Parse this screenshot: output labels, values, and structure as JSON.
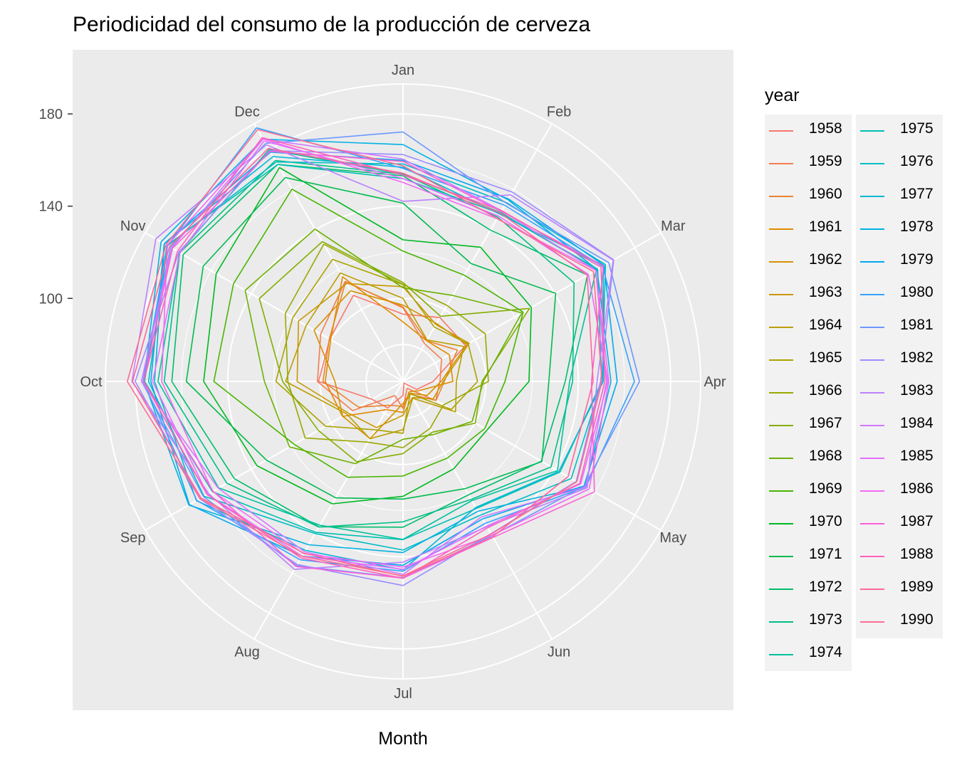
{
  "chart_data": {
    "type": "line",
    "coordinates": "polar",
    "title": "Periodicidad del consumo de la producción de cerveza",
    "xlabel": "Month",
    "ylabel": "",
    "categories": [
      "Jan",
      "Feb",
      "Mar",
      "Apr",
      "May",
      "Jun",
      "Jul",
      "Aug",
      "Sep",
      "Oct",
      "Nov",
      "Dec"
    ],
    "radial_ticks": [
      100,
      140,
      180
    ],
    "radial_range": [
      64,
      193
    ],
    "grid": true,
    "legend_title": "year",
    "legend_placement": "right",
    "series": [
      {
        "name": "1958",
        "color": "#F8766D",
        "values": [
          93.2,
          96,
          95.2,
          77.1,
          70.9,
          64.8,
          70.1,
          77.3,
          79.5,
          100.6,
          100.7,
          107.1
        ]
      },
      {
        "name": "1959",
        "color": "#F27D52",
        "values": [
          95.9,
          82.8,
          83.3,
          80,
          80.4,
          67.5,
          75.7,
          71.1,
          89.3,
          101.1,
          105.2,
          114.1
        ]
      },
      {
        "name": "1960",
        "color": "#EA8331",
        "values": [
          96.3,
          84.4,
          91.2,
          81.9,
          80.5,
          70.4,
          74.8,
          75.9,
          86.3,
          98.7,
          100.9,
          113.8
        ]
      },
      {
        "name": "1961",
        "color": "#E18A00",
        "values": [
          89.8,
          84.4,
          87.2,
          85.6,
          72,
          69.2,
          77.5,
          78.1,
          94.3,
          97.7,
          100.2,
          116.4
        ]
      },
      {
        "name": "1962",
        "color": "#D69100",
        "values": [
          97.1,
          93,
          96,
          80.5,
          76.1,
          69.9,
          73.6,
          92.6,
          94.2,
          93.5,
          108.5,
          109.4
        ]
      },
      {
        "name": "1963",
        "color": "#CA9700",
        "values": [
          105.1,
          92.5,
          97.1,
          81.4,
          79.1,
          72.1,
          78.7,
          87.1,
          91.4,
          109.9,
          116.3,
          113
        ]
      },
      {
        "name": "1964",
        "color": "#BB9D00",
        "values": [
          100,
          84.8,
          94.3,
          87.1,
          90.3,
          72.4,
          84.9,
          92.7,
          92.2,
          114.9,
          112.5,
          118.3
        ]
      },
      {
        "name": "1965",
        "color": "#ABA300",
        "values": [
          106,
          91.2,
          96.6,
          96.3,
          88.2,
          70.2,
          86.5,
          88.2,
          102.8,
          119.1,
          119.2,
          125.1
        ]
      },
      {
        "name": "1966",
        "color": "#99A800",
        "values": [
          106.1,
          102.1,
          105.2,
          101,
          84.3,
          87.5,
          92.7,
          94.4,
          113,
          113.9,
          122.9,
          132.7
        ]
      },
      {
        "name": "1967",
        "color": "#84AD00",
        "values": [
          106.9,
          96.6,
          127.3,
          98.2,
          100.2,
          89.4,
          95.3,
          104.2,
          106.4,
          116.2,
          135.9,
          134
        ]
      },
      {
        "name": "1968",
        "color": "#6BB100",
        "values": [
          104.6,
          107.1,
          123.5,
          98.8,
          98.6,
          90.6,
          89.1,
          105.2,
          120.8,
          124.1,
          143,
          140.3
        ]
      },
      {
        "name": "1969",
        "color": "#49B500",
        "values": [
          120.5,
          117.2,
          124.1,
          108.2,
          104.9,
          102.4,
          105,
          112,
          118.5,
          146,
          148.8,
          160.3
        ]
      },
      {
        "name": "1970",
        "color": "#00B81F",
        "values": [
          125.4,
          131.2,
          128.2,
          118.6,
          106.1,
          107.8,
          113.8,
          125.3,
          137.1,
          150.4,
          157.5,
          171.1
        ]
      },
      {
        "name": "1971",
        "color": "#00BB4E",
        "values": [
          141.3,
          123,
          140.4,
          127.2,
          133.5,
          117.7,
          115,
          122.3,
          132.3,
          157.9,
          164,
          166.1
        ]
      },
      {
        "name": "1972",
        "color": "#00BD6C",
        "values": [
          153.2,
          139.8,
          156.3,
          134.3,
          133.2,
          120.8,
          127.2,
          136.8,
          148.4,
          164.2,
          174,
          172.7
        ]
      },
      {
        "name": "1973",
        "color": "#00BF86",
        "values": [
          153.9,
          146.2,
          149.6,
          137.5,
          138.1,
          123.1,
          124.9,
          136.9,
          152.2,
          167.5,
          175.7,
          174.6
        ]
      },
      {
        "name": "1974",
        "color": "#00C19D",
        "values": [
          153.9,
          148.6,
          160.7,
          136.2,
          141.3,
          123.7,
          132.5,
          136,
          156.3,
          170.2,
          175.9,
          180.1
        ]
      },
      {
        "name": "1975",
        "color": "#00C0B2",
        "values": [
          152,
          148.2,
          161.4,
          150.1,
          142.6,
          127.6,
          132.6,
          139.6,
          159.5,
          176,
          182.1,
          172.6
        ]
      },
      {
        "name": "1976",
        "color": "#00BDC4",
        "values": [
          158.3,
          153.6,
          165.3,
          150.3,
          148.2,
          131,
          137.1,
          140.2,
          163.6,
          174.3,
          181.8,
          173.9
        ]
      },
      {
        "name": "1977",
        "color": "#00B8D5",
        "values": [
          156.9,
          147.8,
          164.2,
          150.8,
          142,
          127.1,
          145.7,
          148.6,
          167.4,
          171.7,
          183.4,
          176.6
        ]
      },
      {
        "name": "1978",
        "color": "#00B2E3",
        "values": [
          166.7,
          155,
          161.1,
          154.1,
          155.2,
          129,
          138.2,
          145.8,
          171.2,
          176.3,
          185.1,
          185.3
        ]
      },
      {
        "name": "1979",
        "color": "#00A9EF",
        "values": [
          159.9,
          155.4,
          164.6,
          156.8,
          154.6,
          132.9,
          143.7,
          151.5,
          170.9,
          173.3,
          183.5,
          178.8
        ]
      },
      {
        "name": "1980",
        "color": "#35A2FF",
        "values": [
          156.4,
          152.2,
          163.8,
          164.3,
          155.5,
          135.1,
          146.3,
          153.3,
          167.2,
          176.6,
          181.8,
          191
        ]
      },
      {
        "name": "1981",
        "color": "#6D97FF",
        "values": [
          172.2,
          153.3,
          167,
          166.5,
          154.8,
          141.2,
          149.1,
          156.3,
          163.9,
          177.3,
          180.3,
          183.2
        ]
      },
      {
        "name": "1982",
        "color": "#9A8CFF",
        "values": [
          162.4,
          158.8,
          169.4,
          149.6,
          150.7,
          140.2,
          152.5,
          155.7,
          165.7,
          180.1,
          176.2,
          179.6
        ]
      },
      {
        "name": "1983",
        "color": "#BA81FF",
        "values": [
          142.1,
          157.4,
          169.2,
          148.1,
          156.2,
          136.8,
          142.4,
          158.1,
          161.3,
          181.5,
          187.7,
          182.5
        ]
      },
      {
        "name": "1984",
        "color": "#D277FF",
        "values": [
          160.4,
          149.5,
          160.4,
          152.2,
          155.4,
          131.9,
          147.7,
          149.3,
          156.5,
          177.4,
          179.7,
          185.3
        ]
      },
      {
        "name": "1985",
        "color": "#E46EFF",
        "values": [
          152,
          146.8,
          156.8,
          152.8,
          152.9,
          136.5,
          145.5,
          151.5,
          161.9,
          172.5,
          175.6,
          184.4
        ]
      },
      {
        "name": "1986",
        "color": "#F269F5",
        "values": [
          150.3,
          145.5,
          160.4,
          153.2,
          157.2,
          141,
          144.5,
          150.2,
          159.3,
          168.6,
          182,
          185.5
        ]
      },
      {
        "name": "1987",
        "color": "#FB61D7",
        "values": [
          159.4,
          149.1,
          164.3,
          145.7,
          159.8,
          142.1,
          149.3,
          156.7,
          159.1,
          176.4,
          179.4,
          179.2
        ]
      },
      {
        "name": "1988",
        "color": "#FF61B9",
        "values": [
          153.5,
          149.5,
          163.1,
          151.5,
          152.4,
          137.3,
          149.4,
          152.4,
          162.1,
          176.4,
          176.9,
          186.1
        ]
      },
      {
        "name": "1989",
        "color": "#FF659A",
        "values": [
          154.3,
          148.3,
          156.2,
          146.4,
          146.6,
          141.8,
          148.5,
          150,
          165.1,
          181.2,
          180.9,
          180.7
        ]
      },
      {
        "name": "1990",
        "color": "#FF6C91",
        "values": [
          157.5,
          145.6,
          159.3,
          150.2,
          151,
          140.4,
          148.3,
          151.6,
          165.6,
          183.5,
          182.6,
          190.1
        ]
      }
    ]
  }
}
